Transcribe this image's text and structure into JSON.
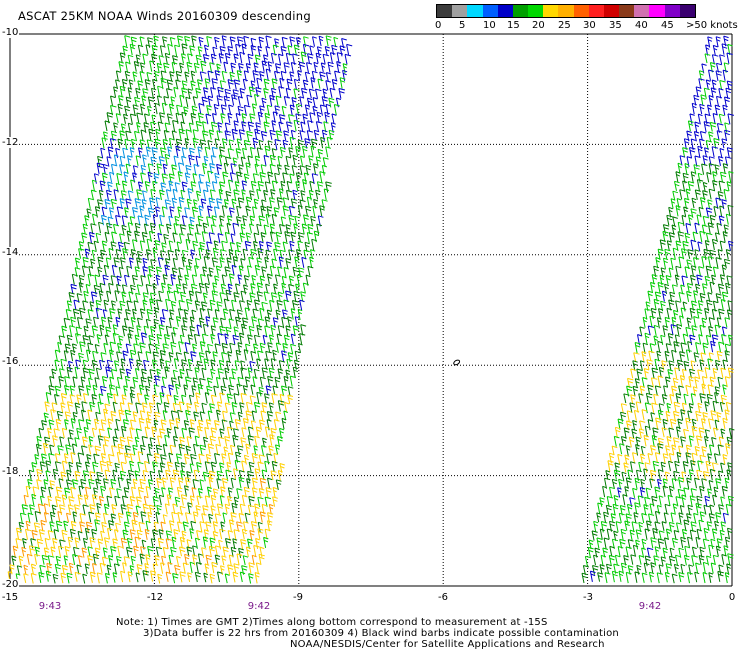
{
  "title": "ASCAT 25KM NOAA Winds 20160309 descending",
  "legend": {
    "colors": [
      "#3c3c3c",
      "#a0a0a0",
      "#00d8ff",
      "#0060ff",
      "#0000c8",
      "#00a000",
      "#00d800",
      "#ffd800",
      "#ffb000",
      "#ff6000",
      "#ff2020",
      "#d00000",
      "#8a3a1a",
      "#d070b0",
      "#ff00ff",
      "#8000c8",
      "#3a0070"
    ],
    "labels": [
      "0",
      "5",
      "10",
      "15",
      "20",
      "25",
      "30",
      "35",
      "40",
      "45",
      ">50 knots"
    ]
  },
  "lat_labels": [
    "-10",
    "-12",
    "-14",
    "-16",
    "-18",
    "-20"
  ],
  "lon_labels": [
    "-15",
    "-12",
    "-9",
    "-6",
    "-3",
    "0"
  ],
  "times": [
    "9:43",
    "9:42",
    "9:42"
  ],
  "island_label": "",
  "notes": {
    "line1": "Note: 1) Times are GMT 2)Times along bottom correspond to measurement at -15S",
    "line2": "3)Data buffer is 22 hrs from 20160309 4) Black wind barbs indicate possible contamination",
    "line3": "NOAA/NESDIS/Center for Satellite Applications and Research"
  },
  "barb_colors": {
    "blue": "#0000cc",
    "light_blue": "#0090e0",
    "dark_green": "#007a00",
    "green": "#00cc00",
    "yellow": "#ffd000",
    "orange": "#ff9a00"
  }
}
